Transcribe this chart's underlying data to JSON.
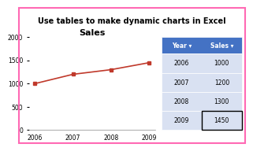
{
  "title_banner": "Use tables to make dynamic charts in Excel",
  "title_banner_bg": "#FFD700",
  "title_banner_text_color": "#000000",
  "chart_title": "Sales",
  "years": [
    2006,
    2007,
    2008,
    2009
  ],
  "sales": [
    1000,
    1200,
    1300,
    1450
  ],
  "line_color": "#C0392B",
  "marker_color": "#C0392B",
  "ylim": [
    0,
    2000
  ],
  "yticks": [
    0,
    500,
    1000,
    1500,
    2000
  ],
  "chart_bg": "#FFFFFF",
  "outer_bg": "#FFFFFF",
  "table_header_bg": "#4472C4",
  "table_header_text": "#FFFFFF",
  "table_row_bg": "#D9E1F2",
  "table_row_text": "#000000",
  "table_last_row_border": "#000000",
  "table_headers": [
    "Year",
    "Sales"
  ],
  "outer_border_color": "#FF69B4",
  "chart_border_color": "#CCCCCC"
}
